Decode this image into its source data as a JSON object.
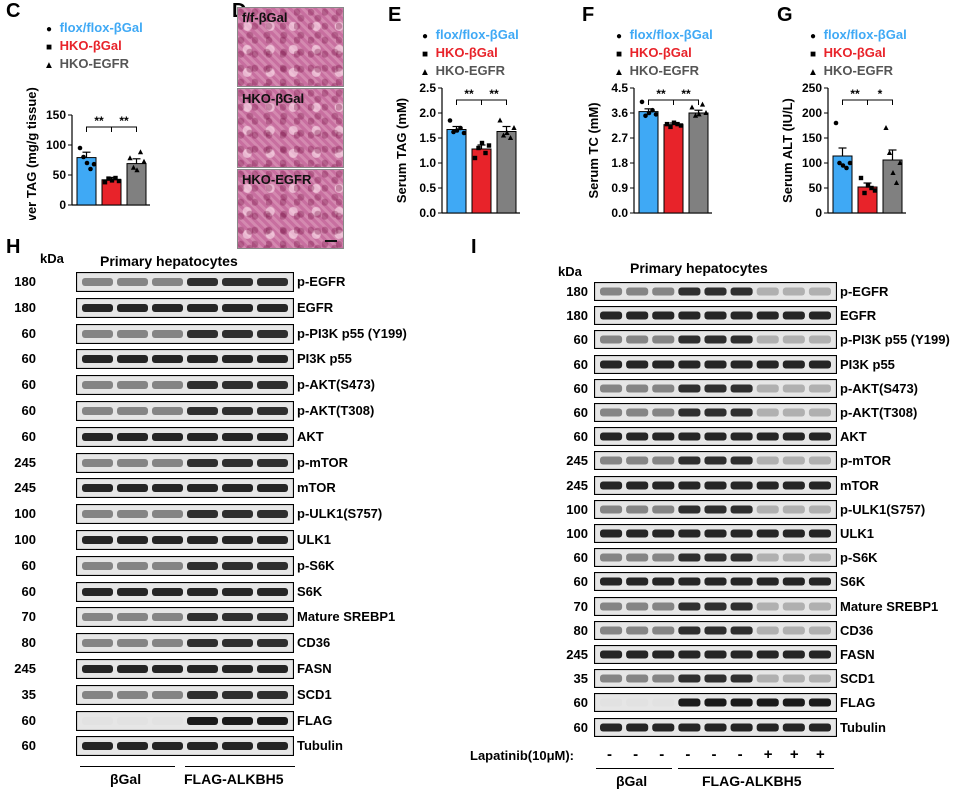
{
  "panels": {
    "C": "C",
    "D": "D",
    "E": "E",
    "F": "F",
    "G": "G",
    "H": "H",
    "I": "I"
  },
  "legend": {
    "items": [
      {
        "label": "flox/flox-βGal",
        "color": "#3fa9f5",
        "marker": "circle"
      },
      {
        "label": "HKO-βGal",
        "color": "#e8232a",
        "marker": "square"
      },
      {
        "label": "HKO-EGFR",
        "color": "#555555",
        "marker": "triangle"
      }
    ]
  },
  "micrographs": {
    "labels": [
      "f/f-βGal",
      "HKO-βGal",
      "HKO-EGFR"
    ]
  },
  "chart_data": [
    {
      "id": "C",
      "type": "bar",
      "ylabel": "Liver TAG (mg/g tissue)",
      "ylim": [
        0,
        150
      ],
      "yticks": [
        "0",
        "50",
        "100",
        "150"
      ],
      "categories": [
        "flox/flox-βGal",
        "HKO-βGal",
        "HKO-EGFR"
      ],
      "values": [
        79,
        42,
        69
      ],
      "errors": [
        9,
        4,
        8
      ],
      "points": [
        [
          95,
          80,
          70,
          60,
          68
        ],
        [
          38,
          44,
          41,
          45,
          40
        ],
        [
          78,
          62,
          58,
          88,
          72
        ]
      ],
      "sig": [
        "**",
        "**"
      ],
      "colors": [
        "#3fa9f5",
        "#e8232a",
        "#808080"
      ]
    },
    {
      "id": "E",
      "type": "bar",
      "ylabel": "Serum TAG (mM)",
      "ylim": [
        0,
        2.5
      ],
      "yticks": [
        "0.0",
        "0.5",
        "1.0",
        "1.5",
        "2.0",
        "2.5"
      ],
      "categories": [
        "flox/flox-βGal",
        "HKO-βGal",
        "HKO-EGFR"
      ],
      "values": [
        1.67,
        1.28,
        1.63
      ],
      "errors": [
        0.06,
        0.08,
        0.1
      ],
      "points": [
        [
          1.85,
          1.62,
          1.65,
          1.7,
          1.6
        ],
        [
          1.1,
          1.3,
          1.4,
          1.2,
          1.35
        ],
        [
          1.85,
          1.55,
          1.6,
          1.5,
          1.7
        ]
      ],
      "sig": [
        "**",
        "**"
      ],
      "colors": [
        "#3fa9f5",
        "#e8232a",
        "#808080"
      ]
    },
    {
      "id": "F",
      "type": "bar",
      "ylabel": "Serum TC (mM)",
      "ylim": [
        0,
        4.5
      ],
      "yticks": [
        "0.0",
        "0.9",
        "1.8",
        "2.7",
        "3.6",
        "4.5"
      ],
      "categories": [
        "flox/flox-βGal",
        "HKO-βGal",
        "HKO-EGFR"
      ],
      "values": [
        3.65,
        3.18,
        3.6
      ],
      "errors": [
        0.1,
        0.06,
        0.1
      ],
      "points": [
        [
          4.0,
          3.5,
          3.6,
          3.7,
          3.55
        ],
        [
          3.2,
          3.1,
          3.25,
          3.2,
          3.15
        ],
        [
          3.8,
          3.5,
          3.55,
          3.9,
          3.6
        ]
      ],
      "sig": [
        "**",
        "**"
      ],
      "colors": [
        "#3fa9f5",
        "#e8232a",
        "#808080"
      ]
    },
    {
      "id": "G",
      "type": "bar",
      "ylabel": "Serum ALT (IU/L)",
      "ylim": [
        0,
        250
      ],
      "yticks": [
        "0",
        "50",
        "100",
        "150",
        "200",
        "250"
      ],
      "categories": [
        "flox/flox-βGal",
        "HKO-βGal",
        "HKO-EGFR"
      ],
      "values": [
        114,
        52,
        106
      ],
      "errors": [
        16,
        8,
        20
      ],
      "points": [
        [
          180,
          100,
          95,
          90,
          100
        ],
        [
          70,
          40,
          55,
          50,
          45
        ],
        [
          170,
          120,
          80,
          60,
          100
        ]
      ],
      "sig": [
        "**",
        "*"
      ],
      "colors": [
        "#3fa9f5",
        "#e8232a",
        "#808080"
      ]
    }
  ],
  "blotH": {
    "title": "Primary hepatocytes",
    "kda_header": "kDa",
    "rows": [
      {
        "kda": "180",
        "label": "p-EGFR"
      },
      {
        "kda": "180",
        "label": "EGFR"
      },
      {
        "kda": "60",
        "label": "p-PI3K p55 (Y199)"
      },
      {
        "kda": "60",
        "label": "PI3K p55"
      },
      {
        "kda": "60",
        "label": "p-AKT(S473)"
      },
      {
        "kda": "60",
        "label": "p-AKT(T308)"
      },
      {
        "kda": "60",
        "label": "AKT"
      },
      {
        "kda": "245",
        "label": "p-mTOR"
      },
      {
        "kda": "245",
        "label": "mTOR"
      },
      {
        "kda": "100",
        "label": "p-ULK1(S757)"
      },
      {
        "kda": "100",
        "label": "ULK1"
      },
      {
        "kda": "60",
        "label": "p-S6K"
      },
      {
        "kda": "60",
        "label": "S6K"
      },
      {
        "kda": "70",
        "label": "Mature SREBP1"
      },
      {
        "kda": "80",
        "label": "CD36"
      },
      {
        "kda": "245",
        "label": "FASN"
      },
      {
        "kda": "35",
        "label": "SCD1"
      },
      {
        "kda": "60",
        "label": "FLAG"
      },
      {
        "kda": "60",
        "label": "Tubulin"
      }
    ],
    "groups": [
      "βGal",
      "FLAG-ALKBH5"
    ]
  },
  "blotI": {
    "title": "Primary hepatocytes",
    "kda_header": "kDa",
    "rows": [
      {
        "kda": "180",
        "label": "p-EGFR"
      },
      {
        "kda": "180",
        "label": "EGFR"
      },
      {
        "kda": "60",
        "label": "p-PI3K p55 (Y199)"
      },
      {
        "kda": "60",
        "label": "PI3K p55"
      },
      {
        "kda": "60",
        "label": "p-AKT(S473)"
      },
      {
        "kda": "60",
        "label": "p-AKT(T308)"
      },
      {
        "kda": "60",
        "label": "AKT"
      },
      {
        "kda": "245",
        "label": "p-mTOR"
      },
      {
        "kda": "245",
        "label": "mTOR"
      },
      {
        "kda": "100",
        "label": "p-ULK1(S757)"
      },
      {
        "kda": "100",
        "label": "ULK1"
      },
      {
        "kda": "60",
        "label": "p-S6K"
      },
      {
        "kda": "60",
        "label": "S6K"
      },
      {
        "kda": "70",
        "label": "Mature SREBP1"
      },
      {
        "kda": "80",
        "label": "CD36"
      },
      {
        "kda": "245",
        "label": "FASN"
      },
      {
        "kda": "35",
        "label": "SCD1"
      },
      {
        "kda": "60",
        "label": "FLAG"
      },
      {
        "kda": "60",
        "label": "Tubulin"
      }
    ],
    "treatment_label": "Lapatinib(10μM):",
    "treatment": [
      "-",
      "-",
      "-",
      "-",
      "-",
      "-",
      "+",
      "+",
      "+"
    ],
    "groups": [
      "βGal",
      "FLAG-ALKBH5"
    ]
  }
}
